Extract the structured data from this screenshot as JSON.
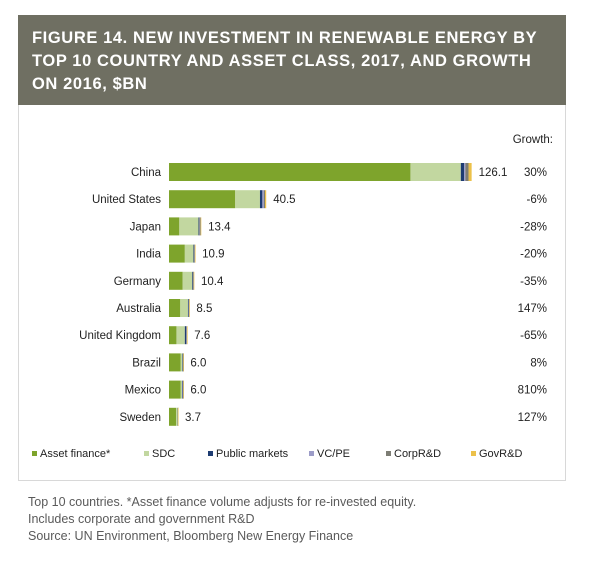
{
  "title": "FIGURE 14. NEW INVESTMENT IN RENEWABLE ENERGY BY TOP 10 COUNTRY AND ASSET CLASS, 2017, AND GROWTH ON 2016, $BN",
  "growth_header": "Growth:",
  "notes": {
    "line1": "Top 10 countries. *Asset finance volume adjusts for re-invested equity.",
    "line2": "Includes corporate and government R&D",
    "source": "Source: UN Environment, Bloomberg New Energy Finance"
  },
  "colors": {
    "Asset finance*": "#7ea42c",
    "SDC": "#c2d7a0",
    "Public markets": "#1e3c72",
    "VC/PE": "#9c9cc8",
    "CorpR&D": "#7d7d74",
    "GovR&D": "#ecc14a"
  },
  "chart_data": {
    "type": "bar",
    "orientation": "horizontal",
    "stacked": true,
    "categories": [
      "China",
      "United States",
      "Japan",
      "India",
      "Germany",
      "Australia",
      "United Kingdom",
      "Brazil",
      "Mexico",
      "Sweden"
    ],
    "totals": [
      126.1,
      40.5,
      13.4,
      10.9,
      10.4,
      8.5,
      7.6,
      6.0,
      6.0,
      3.7
    ],
    "total_labels": [
      "126.1",
      "40.5",
      "13.4",
      "10.9",
      "10.4",
      "8.5",
      "7.6",
      "6.0",
      "6.0",
      "3.7"
    ],
    "growth_labels": [
      "30%",
      "-6%",
      "-28%",
      "-20%",
      "-35%",
      "147%",
      "-65%",
      "8%",
      "810%",
      "127%"
    ],
    "growth": [
      30,
      -6,
      -28,
      -20,
      -35,
      147,
      -65,
      8,
      810,
      127
    ],
    "series": [
      {
        "name": "Asset finance*",
        "values": [
          100.6,
          27.6,
          4.3,
          6.6,
          5.7,
          4.7,
          3.1,
          4.9,
          4.9,
          3.0
        ]
      },
      {
        "name": "SDC",
        "values": [
          21.0,
          10.3,
          8.0,
          3.6,
          4.0,
          3.2,
          3.5,
          0.7,
          0.5,
          0.6
        ]
      },
      {
        "name": "Public markets",
        "values": [
          1.4,
          1.0,
          0.3,
          0.3,
          0.3,
          0.3,
          0.5,
          0.2,
          0.2,
          0.05
        ]
      },
      {
        "name": "VC/PE",
        "values": [
          0.5,
          0.6,
          0.1,
          0.1,
          0.1,
          0.1,
          0.2,
          0.1,
          0.3,
          0.0
        ]
      },
      {
        "name": "CorpR&D",
        "values": [
          1.3,
          0.5,
          0.5,
          0.2,
          0.2,
          0.1,
          0.2,
          0.05,
          0.05,
          0.05
        ]
      },
      {
        "name": "GovR&D",
        "values": [
          1.3,
          0.5,
          0.2,
          0.1,
          0.1,
          0.1,
          0.1,
          0.05,
          0.05,
          0.05
        ]
      }
    ],
    "legend_position": "bottom",
    "grid": false
  }
}
